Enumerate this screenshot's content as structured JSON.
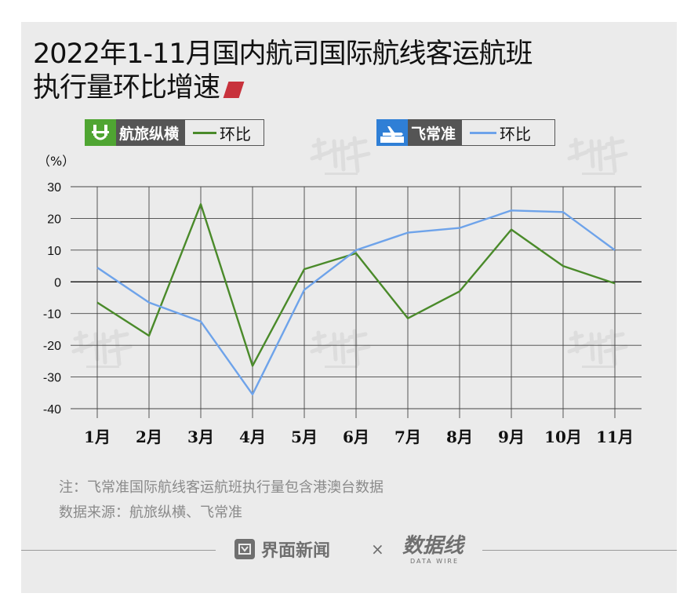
{
  "title_line1": "2022年1-11月国内航司国际航线客运航班",
  "title_line2": "执行量环比增速",
  "legend": {
    "source1": "航旅纵横",
    "source2": "飞常准",
    "series_label": "环比"
  },
  "unit_label": "（%）",
  "footnotes": {
    "note": "注：飞常准国际航线客运航班执行量包含港澳台数据",
    "source": "数据来源：航旅纵横、飞常准"
  },
  "branding": {
    "jiemian": "界面新闻",
    "times": "×",
    "datawire_cn": "数据线",
    "datawire_en": "DATA WIRE"
  },
  "colors": {
    "series_green": "#4a8a2a",
    "series_blue": "#6ea3ea",
    "title_mark": "#c8323c",
    "logo_bg": "#555555",
    "card_bg": "#ebebeb"
  },
  "chart_data": {
    "type": "line",
    "categories": [
      "1月",
      "2月",
      "3月",
      "4月",
      "5月",
      "6月",
      "7月",
      "8月",
      "9月",
      "10月",
      "11月"
    ],
    "series": [
      {
        "name": "航旅纵横 环比",
        "color": "#4a8a2a",
        "values": [
          -6.5,
          -17,
          24.5,
          -26.5,
          4,
          9,
          -11.5,
          -3,
          16.5,
          5,
          -0.5
        ]
      },
      {
        "name": "飞常准 环比",
        "color": "#6ea3ea",
        "values": [
          4.5,
          -6.5,
          -12.5,
          -35.5,
          -2.5,
          10,
          15.5,
          17,
          22.5,
          22,
          10
        ]
      }
    ],
    "yticks": [
      30,
      20,
      10,
      0,
      -10,
      -20,
      -30,
      -40
    ],
    "ylim": [
      -40,
      30
    ],
    "xlabel": "",
    "ylabel": "%",
    "grid": true,
    "legend_position": "top"
  }
}
